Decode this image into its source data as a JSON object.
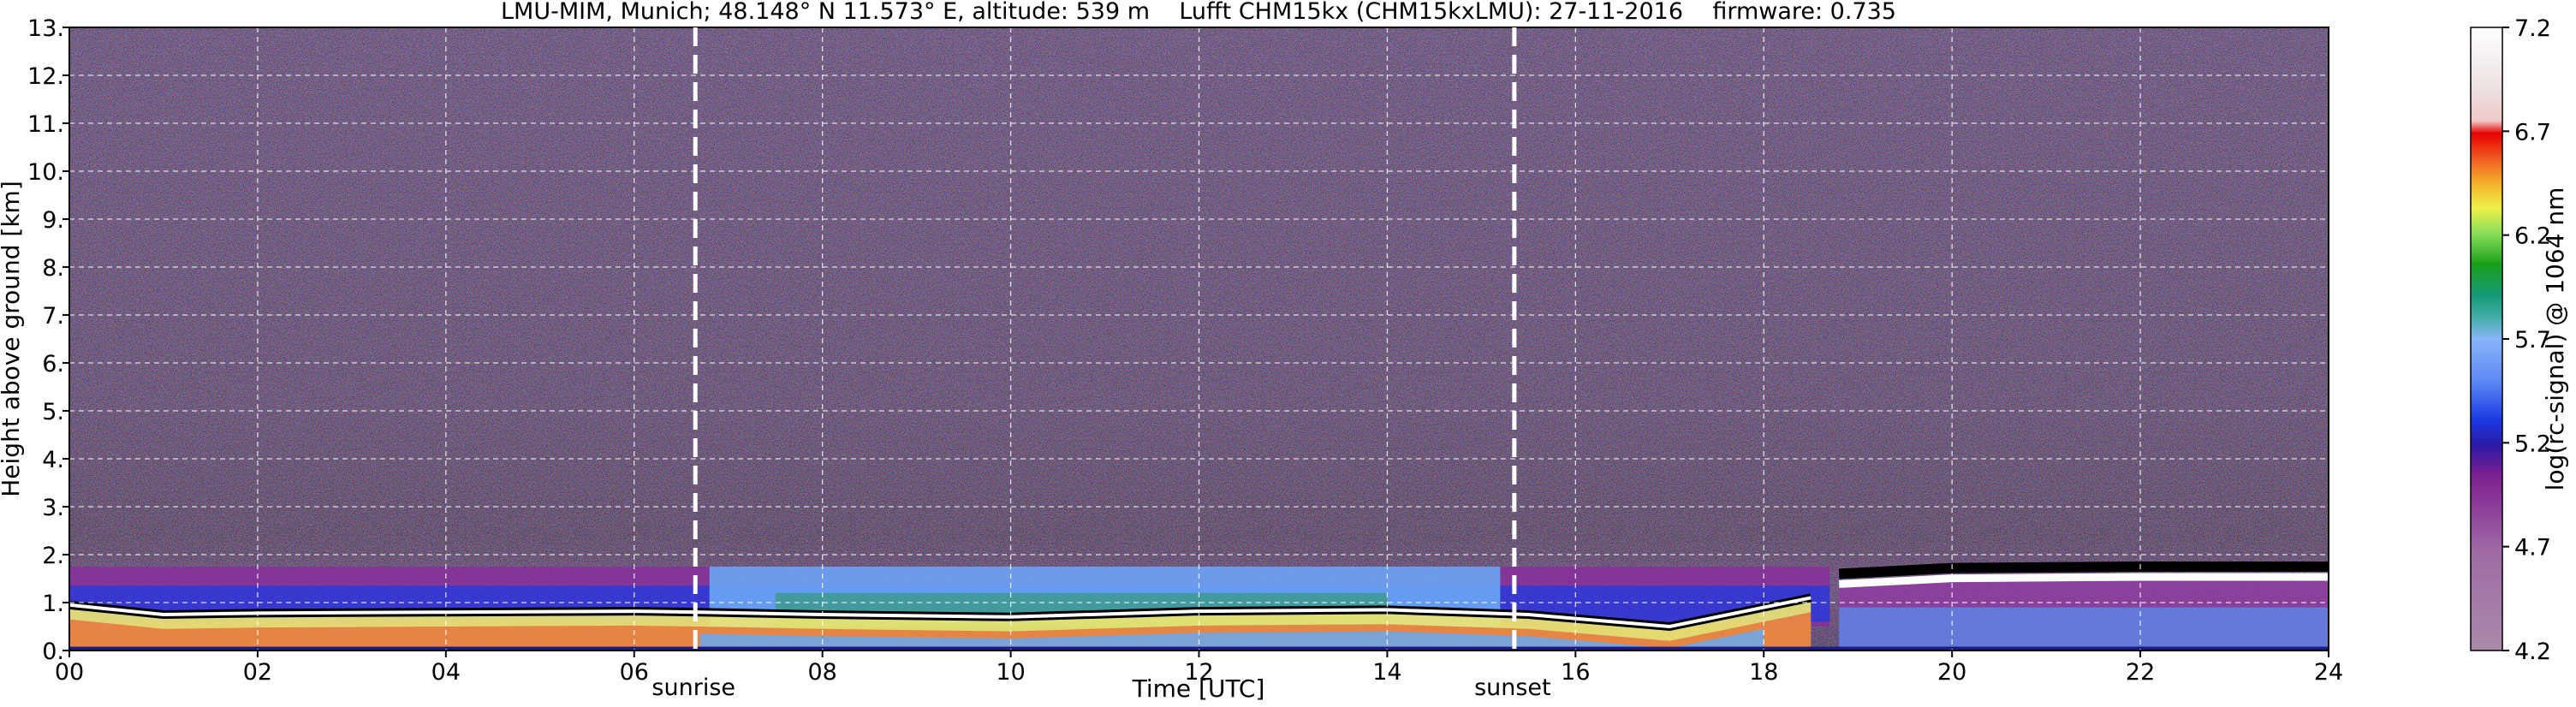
{
  "chart_data": {
    "type": "heatmap",
    "title": "LMU-MIM, Munich; 48.148° N 11.573° E, altitude: 539 m    Lufft CHM15kx (CHM15kxLMU): 27-11-2016    firmware: 0.735",
    "xlabel": "Time [UTC]",
    "ylabel": "Height above ground [km]",
    "colorbar_label": "log(rc-signal) @ 1064 nm",
    "xlim": [
      0,
      24
    ],
    "ylim": [
      0,
      13
    ],
    "x_ticks": [
      "00",
      "02",
      "04",
      "06",
      "08",
      "10",
      "12",
      "14",
      "16",
      "18",
      "20",
      "22",
      "24"
    ],
    "y_ticks": [
      "0.",
      "1.",
      "2.",
      "3.",
      "4.",
      "5.",
      "6.",
      "7.",
      "8.",
      "9.",
      "10.",
      "11.",
      "12.",
      "13."
    ],
    "colorbar_range": [
      4.2,
      7.2
    ],
    "colorbar_ticks": [
      "4.2",
      "4.7",
      "5.2",
      "5.7",
      "6.2",
      "6.7",
      "7.2"
    ],
    "grid": true,
    "events": [
      {
        "label": "sunrise",
        "time": 6.65
      },
      {
        "label": "sunset",
        "time": 15.35
      }
    ],
    "features": {
      "boundary_layer_top_km": [
        {
          "time": 0.0,
          "height": 0.95
        },
        {
          "time": 1.0,
          "height": 0.75
        },
        {
          "time": 2.0,
          "height": 0.78
        },
        {
          "time": 4.0,
          "height": 0.8
        },
        {
          "time": 6.0,
          "height": 0.82
        },
        {
          "time": 6.7,
          "height": 0.8
        },
        {
          "time": 8.0,
          "height": 0.75
        },
        {
          "time": 10.0,
          "height": 0.7
        },
        {
          "time": 12.0,
          "height": 0.82
        },
        {
          "time": 14.0,
          "height": 0.85
        },
        {
          "time": 15.5,
          "height": 0.75
        },
        {
          "time": 17.0,
          "height": 0.5
        },
        {
          "time": 18.0,
          "height": 0.9
        },
        {
          "time": 18.5,
          "height": 1.1
        }
      ],
      "upper_layer_km": [
        {
          "time": 18.8,
          "height": 1.6
        },
        {
          "time": 20.0,
          "height": 1.72
        },
        {
          "time": 22.0,
          "height": 1.75
        },
        {
          "time": 24.0,
          "height": 1.75
        }
      ]
    },
    "colors": {
      "background_noise": "#3a2a4a",
      "colormap": [
        "#a78ca8",
        "#9a5aa0",
        "#6a0a80",
        "#1a1ad0",
        "#4a78f0",
        "#7aaaf8",
        "#18a48a",
        "#1a9a1a",
        "#aaf05a",
        "#f0f040",
        "#f0a020",
        "#f04020",
        "#d80000",
        "#f0c8c8",
        "#ffffff"
      ]
    }
  }
}
